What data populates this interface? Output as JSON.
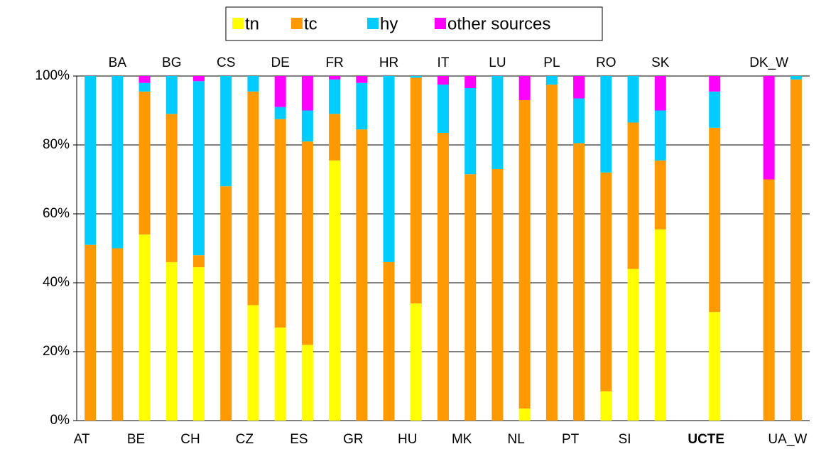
{
  "chart_data": {
    "type": "stacked_bar",
    "categories": [
      "AT",
      "BA",
      "BE",
      "BG",
      "CH",
      "CS",
      "CZ",
      "DE",
      "ES",
      "FR",
      "GR",
      "HR",
      "HU",
      "IT",
      "MK",
      "LU",
      "NL",
      "PL",
      "PT",
      "RO",
      "SI",
      "SK",
      null,
      "UCTE",
      null,
      "DK_W",
      "UA_W"
    ],
    "series": [
      {
        "name": "tn",
        "color": "#ffff00",
        "values": [
          0,
          0,
          54,
          46,
          44.5,
          0,
          33.5,
          27,
          22,
          75.5,
          0,
          0,
          34,
          0,
          0,
          0,
          3.5,
          0,
          0,
          8.5,
          44,
          55.5,
          null,
          31.5,
          null,
          0,
          0
        ]
      },
      {
        "name": "tc",
        "color": "#ff9900",
        "values": [
          51,
          50,
          41.5,
          43,
          3.5,
          68,
          62,
          60.5,
          59,
          13.5,
          84.5,
          46,
          65.5,
          83.5,
          71.5,
          73,
          89.5,
          97.5,
          80.5,
          63.5,
          42.5,
          20,
          null,
          53.5,
          null,
          70,
          99
        ]
      },
      {
        "name": "hy",
        "color": "#00ccff",
        "values": [
          49,
          50,
          2.5,
          11,
          50.5,
          32,
          4.5,
          3.5,
          9,
          10,
          13.5,
          54,
          0.5,
          14,
          25,
          27,
          0,
          2.5,
          13,
          28,
          13.5,
          14.5,
          null,
          10.5,
          null,
          0,
          1
        ]
      },
      {
        "name": "other sources",
        "color": "#ff00ff",
        "values": [
          0,
          0,
          2,
          0,
          1.5,
          0,
          0,
          9,
          10,
          1,
          2,
          0,
          0,
          2.5,
          3.5,
          0,
          7,
          0,
          6.5,
          0,
          0,
          10,
          null,
          4.5,
          null,
          30,
          0
        ]
      }
    ],
    "ylim": [
      0,
      100
    ],
    "yticks": [
      {
        "value": 0,
        "label": "0%"
      },
      {
        "value": 20,
        "label": "20%"
      },
      {
        "value": 40,
        "label": "40%"
      },
      {
        "value": 60,
        "label": "60%"
      },
      {
        "value": 80,
        "label": "80%"
      },
      {
        "value": 100,
        "label": "100%"
      }
    ],
    "grid": true,
    "legend": "top"
  }
}
